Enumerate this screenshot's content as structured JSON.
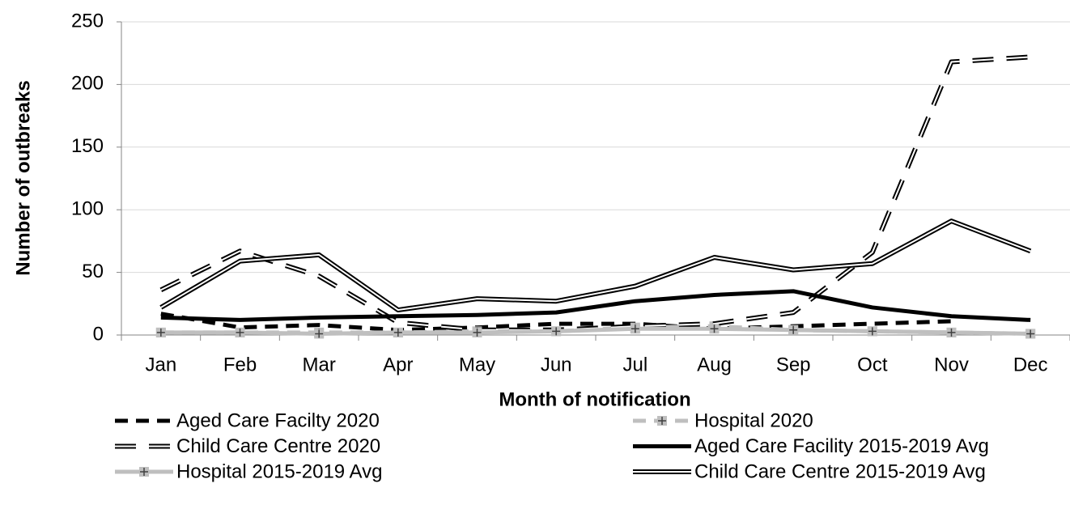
{
  "chart_data": {
    "type": "line",
    "y_label": "Number of outbreaks",
    "x_label": "Month of notification",
    "categories": [
      "Jan",
      "Feb",
      "Mar",
      "Apr",
      "May",
      "Jun",
      "Jul",
      "Aug",
      "Sep",
      "Oct",
      "Nov",
      "Dec"
    ],
    "ylim": [
      0,
      250
    ],
    "yticks": [
      0,
      50,
      100,
      150,
      200,
      250
    ],
    "grid": true,
    "series": [
      {
        "name": "Aged Care Facilty 2020",
        "color": "#000000",
        "style": "dashed",
        "values": [
          17,
          6,
          8,
          4,
          6,
          9,
          9,
          5,
          7,
          9,
          11,
          null
        ]
      },
      {
        "name": "Hospital 2020",
        "color": "#bfbfbf",
        "style": "dashed",
        "marker": "plus",
        "values": [
          2,
          2,
          2,
          2,
          3,
          3,
          6,
          7,
          4,
          3,
          2,
          1
        ]
      },
      {
        "name": "Child Care Centre 2020",
        "color": "#000000",
        "style": "double-dashed",
        "values": [
          36,
          67,
          47,
          10,
          4,
          4,
          7,
          9,
          18,
          66,
          218,
          222
        ]
      },
      {
        "name": "Aged Care Facility 2015-2019 Avg",
        "color": "#000000",
        "style": "solid",
        "values": [
          14,
          12,
          14,
          15,
          16,
          18,
          27,
          32,
          35,
          22,
          15,
          12
        ]
      },
      {
        "name": "Hospital 2015-2019 Avg",
        "color": "#bfbfbf",
        "style": "solid",
        "marker": "plus",
        "values": [
          2,
          2,
          1,
          2,
          2,
          3,
          5,
          5,
          4,
          3,
          2,
          1
        ]
      },
      {
        "name": "Child Care Centre 2015-2019 Avg",
        "color": "#000000",
        "style": "double",
        "values": [
          22,
          59,
          64,
          20,
          29,
          27,
          39,
          62,
          52,
          57,
          91,
          67
        ]
      }
    ]
  }
}
